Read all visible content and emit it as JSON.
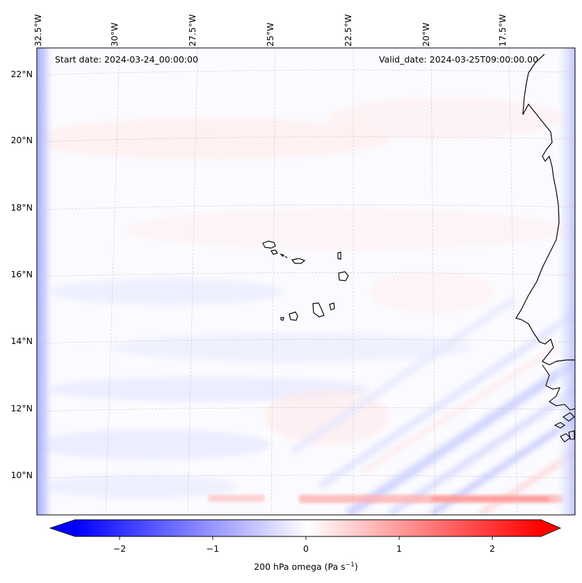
{
  "map": {
    "start_label": "Start date: 2024-03-24_00:00:00",
    "valid_label": "Valid_date: 2024-03-25T09:00:00.00",
    "lon_labels": [
      "32.5°W",
      "30°W",
      "27.5°W",
      "25°W",
      "22.5°W",
      "20°W",
      "17.5°W"
    ],
    "lat_labels": [
      "22°N",
      "20°N",
      "18°N",
      "16°N",
      "14°N",
      "12°N",
      "10°N"
    ],
    "field": "200 hPa omega"
  },
  "colorbar": {
    "label": "200 hPa omega (Pa s",
    "label_unit_sup": "−1",
    "label_close": ")",
    "ticks": [
      "−2",
      "−1",
      "0",
      "1",
      "2"
    ],
    "min": -2.5,
    "max": 2.5,
    "low_color": "#0000ff",
    "mid_color": "#ffffff",
    "high_color": "#ff0000"
  }
}
